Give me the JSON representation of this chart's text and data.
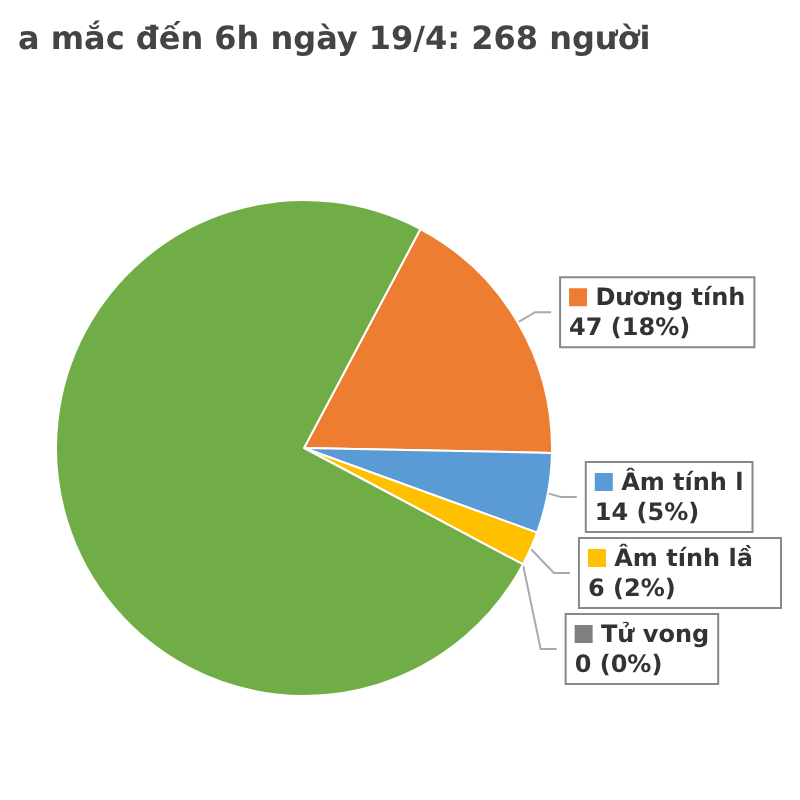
{
  "chart_data": {
    "type": "pie",
    "title": "a mắc đến 6h ngày 19/4: 268 người",
    "categories": [
      "Dương tính",
      "Âm tính l",
      "Âm tính lầ",
      "Tử vong",
      null
    ],
    "values": [
      47,
      14,
      6,
      0,
      201
    ],
    "value_labels": [
      "47 (18%)",
      "14 (5%)",
      "6 (2%)",
      "0 (0%)",
      null
    ],
    "colors": [
      "#ed7d31",
      "#5b9bd5",
      "#ffc000",
      "#7f7f7f",
      "#70ad47"
    ],
    "legend": "right"
  }
}
